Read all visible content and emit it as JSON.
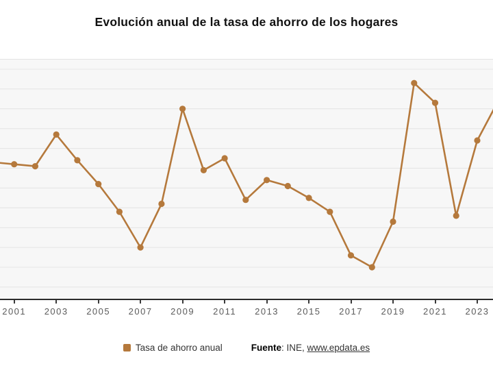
{
  "page": {
    "title": "Evolución anual de la tasa de ahorro de los hogares"
  },
  "legend": {
    "label": "Tasa de ahorro anual"
  },
  "source": {
    "label": "Fuente",
    "rest": ": INE, ",
    "link": "www.epdata.es"
  },
  "colors": {
    "series": "#b5793c",
    "grid": "#e4e4e4",
    "plot_background": "#f7f7f7",
    "axis": "#2b2b2b",
    "tick_label": "#5b5b5b",
    "title": "#111111"
  },
  "chart_data": {
    "type": "line",
    "title": "Evolución anual de la tasa de ahorro de los hogares",
    "series": [
      {
        "name": "Tasa de ahorro anual",
        "x": [
          2000,
          2001,
          2002,
          2003,
          2004,
          2005,
          2006,
          2007,
          2008,
          2009,
          2010,
          2011,
          2012,
          2013,
          2014,
          2015,
          2016,
          2017,
          2018,
          2019,
          2020,
          2021,
          2022,
          2023,
          2024
        ],
        "values": [
          10.3,
          10.2,
          10.1,
          11.7,
          10.4,
          9.2,
          7.8,
          6.0,
          8.2,
          13.0,
          9.9,
          10.5,
          8.4,
          9.4,
          9.1,
          8.5,
          7.8,
          5.6,
          5.0,
          7.3,
          14.3,
          13.3,
          7.6,
          11.4,
          13.4
        ]
      }
    ],
    "clipped_edge_years": [
      2000,
      2024
    ],
    "x_tick_labels": [
      "2001",
      "2003",
      "2005",
      "2007",
      "2009",
      "2011",
      "2013",
      "2015",
      "2017",
      "2019",
      "2021",
      "2023"
    ],
    "xlabel": "",
    "ylabel": "",
    "ylim": [
      3.3,
      15.5
    ],
    "y_grid_step": 1,
    "y_gridline_top_value": 15,
    "y_axis_labels_visible": false,
    "grid": true,
    "legend_position": "bottom",
    "marker": "circle"
  }
}
